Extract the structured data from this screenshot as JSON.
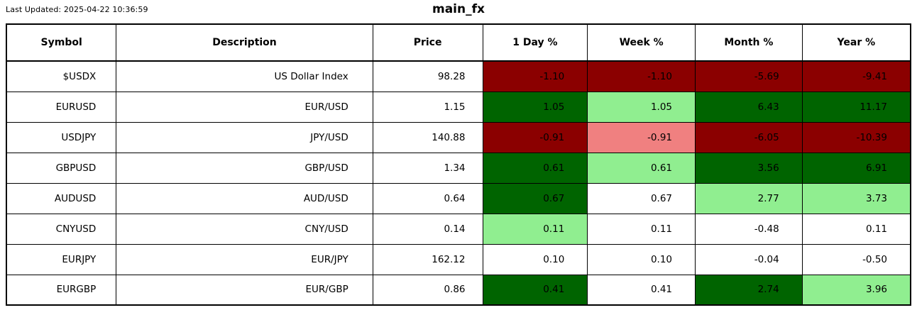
{
  "header": {
    "last_updated": "Last Updated: 2025-04-22 10:36:59",
    "title": "main_fx"
  },
  "palette": {
    "darkred": "#8B0000",
    "lightcoral": "#F08080",
    "darkgreen": "#006400",
    "lightgreen": "#90EE90",
    "white": "#FFFFFF"
  },
  "chart_data": {
    "type": "table",
    "title": "main_fx",
    "last_updated": "2025-04-22 10:36:59",
    "columns": [
      "Symbol",
      "Description",
      "Price",
      "1 Day %",
      "Week %",
      "Month %",
      "Year %"
    ],
    "color_legend": "cell background encodes magnitude/sign of % change: darkred strong negative, lightcoral mild negative, white neutral, lightgreen mild positive, darkgreen strong positive",
    "rows": [
      {
        "symbol": "$USDX",
        "description": "US Dollar Index",
        "price": "98.28",
        "values": [
          "-1.10",
          "-1.10",
          "-5.69",
          "-9.41"
        ],
        "colors": [
          "darkred",
          "darkred",
          "darkred",
          "darkred"
        ]
      },
      {
        "symbol": "EURUSD",
        "description": "EUR/USD",
        "price": "1.15",
        "values": [
          "1.05",
          "1.05",
          "6.43",
          "11.17"
        ],
        "colors": [
          "darkgreen",
          "lightgreen",
          "darkgreen",
          "darkgreen"
        ]
      },
      {
        "symbol": "USDJPY",
        "description": "JPY/USD",
        "price": "140.88",
        "values": [
          "-0.91",
          "-0.91",
          "-6.05",
          "-10.39"
        ],
        "colors": [
          "darkred",
          "lightcoral",
          "darkred",
          "darkred"
        ]
      },
      {
        "symbol": "GBPUSD",
        "description": "GBP/USD",
        "price": "1.34",
        "values": [
          "0.61",
          "0.61",
          "3.56",
          "6.91"
        ],
        "colors": [
          "darkgreen",
          "lightgreen",
          "darkgreen",
          "darkgreen"
        ]
      },
      {
        "symbol": "AUDUSD",
        "description": "AUD/USD",
        "price": "0.64",
        "values": [
          "0.67",
          "0.67",
          "2.77",
          "3.73"
        ],
        "colors": [
          "darkgreen",
          "white",
          "lightgreen",
          "lightgreen"
        ]
      },
      {
        "symbol": "CNYUSD",
        "description": "CNY/USD",
        "price": "0.14",
        "values": [
          "0.11",
          "0.11",
          "-0.48",
          "0.11"
        ],
        "colors": [
          "lightgreen",
          "white",
          "white",
          "white"
        ]
      },
      {
        "symbol": "EURJPY",
        "description": "EUR/JPY",
        "price": "162.12",
        "values": [
          "0.10",
          "0.10",
          "-0.04",
          "-0.50"
        ],
        "colors": [
          "white",
          "white",
          "white",
          "white"
        ]
      },
      {
        "symbol": "EURGBP",
        "description": "EUR/GBP",
        "price": "0.86",
        "values": [
          "0.41",
          "0.41",
          "2.74",
          "3.96"
        ],
        "colors": [
          "darkgreen",
          "white",
          "darkgreen",
          "lightgreen"
        ]
      }
    ]
  }
}
